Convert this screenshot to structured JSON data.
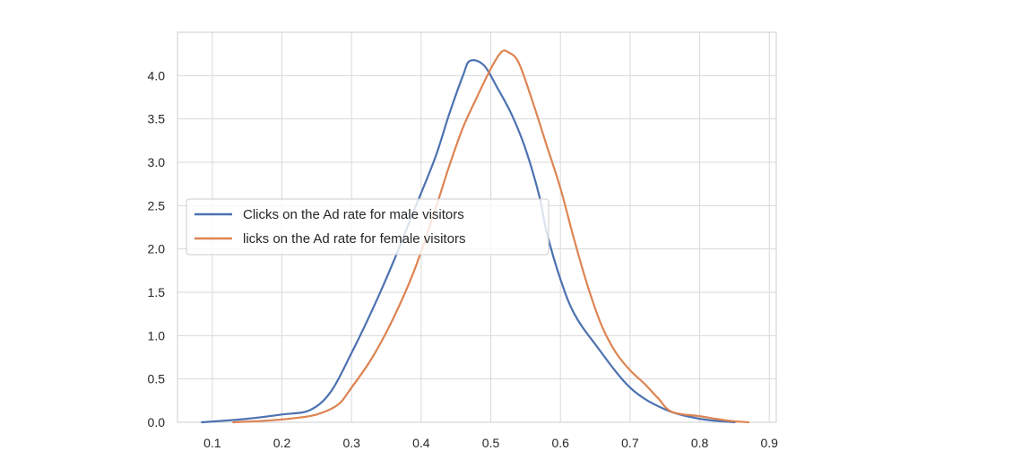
{
  "chart_data": {
    "type": "line",
    "title": "",
    "xlabel": "",
    "ylabel": "",
    "xlim": [
      0.05,
      0.91
    ],
    "ylim": [
      0.0,
      4.5
    ],
    "xticks": [
      0.1,
      0.2,
      0.3,
      0.4,
      0.5,
      0.6,
      0.7,
      0.8,
      0.9
    ],
    "yticks": [
      0.0,
      0.5,
      1.0,
      1.5,
      2.0,
      2.5,
      3.0,
      3.5,
      4.0
    ],
    "xtick_labels": [
      "0.1",
      "0.2",
      "0.3",
      "0.4",
      "0.5",
      "0.6",
      "0.7",
      "0.8",
      "0.9"
    ],
    "ytick_labels": [
      "0.0",
      "0.5",
      "1.0",
      "1.5",
      "2.0",
      "2.5",
      "3.0",
      "3.5",
      "4.0"
    ],
    "grid": true,
    "legend_position": "center-left",
    "series": [
      {
        "name": "Clicks on the Ad rate for male visitors",
        "color": "#4c72b0",
        "points": [
          [
            0.085,
            0.0
          ],
          [
            0.12,
            0.02
          ],
          [
            0.15,
            0.04
          ],
          [
            0.2,
            0.09
          ],
          [
            0.24,
            0.14
          ],
          [
            0.27,
            0.35
          ],
          [
            0.3,
            0.8
          ],
          [
            0.33,
            1.3
          ],
          [
            0.36,
            1.85
          ],
          [
            0.39,
            2.45
          ],
          [
            0.42,
            3.05
          ],
          [
            0.44,
            3.55
          ],
          [
            0.46,
            4.0
          ],
          [
            0.47,
            4.17
          ],
          [
            0.49,
            4.12
          ],
          [
            0.51,
            3.85
          ],
          [
            0.53,
            3.55
          ],
          [
            0.55,
            3.15
          ],
          [
            0.57,
            2.6
          ],
          [
            0.58,
            2.2
          ],
          [
            0.6,
            1.65
          ],
          [
            0.62,
            1.25
          ],
          [
            0.65,
            0.9
          ],
          [
            0.7,
            0.4
          ],
          [
            0.75,
            0.15
          ],
          [
            0.8,
            0.04
          ],
          [
            0.85,
            0.0
          ]
        ]
      },
      {
        "name": "licks on the Ad rate for female visitors",
        "color": "#dd8452",
        "points": [
          [
            0.13,
            0.0
          ],
          [
            0.18,
            0.02
          ],
          [
            0.22,
            0.05
          ],
          [
            0.25,
            0.09
          ],
          [
            0.28,
            0.2
          ],
          [
            0.3,
            0.4
          ],
          [
            0.33,
            0.75
          ],
          [
            0.36,
            1.2
          ],
          [
            0.39,
            1.75
          ],
          [
            0.42,
            2.45
          ],
          [
            0.44,
            2.95
          ],
          [
            0.46,
            3.4
          ],
          [
            0.48,
            3.75
          ],
          [
            0.5,
            4.08
          ],
          [
            0.515,
            4.27
          ],
          [
            0.525,
            4.27
          ],
          [
            0.54,
            4.15
          ],
          [
            0.56,
            3.7
          ],
          [
            0.58,
            3.2
          ],
          [
            0.6,
            2.7
          ],
          [
            0.62,
            2.1
          ],
          [
            0.64,
            1.55
          ],
          [
            0.66,
            1.1
          ],
          [
            0.68,
            0.8
          ],
          [
            0.7,
            0.6
          ],
          [
            0.72,
            0.45
          ],
          [
            0.74,
            0.28
          ],
          [
            0.76,
            0.12
          ],
          [
            0.8,
            0.07
          ],
          [
            0.84,
            0.02
          ],
          [
            0.87,
            0.0
          ]
        ]
      }
    ]
  }
}
